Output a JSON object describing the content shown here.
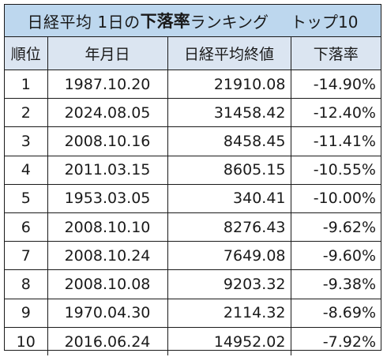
{
  "title": {
    "pre": "日経平均 1日の",
    "bold": "下落率",
    "post": "ランキング",
    "suffix": "トップ10"
  },
  "headers": [
    "順位",
    "年月日",
    "日経平均終値",
    "下落率"
  ],
  "rows": [
    [
      "1",
      "1987.10.20",
      "21910.08",
      "-14.90%"
    ],
    [
      "2",
      "2024.08.05",
      "31458.42",
      "-12.40%"
    ],
    [
      "3",
      "2008.10.16",
      "8458.45",
      "-11.41%"
    ],
    [
      "4",
      "2011.03.15",
      "8605.15",
      "-10.55%"
    ],
    [
      "5",
      "1953.03.05",
      "340.41",
      "-10.00%"
    ],
    [
      "6",
      "2008.10.10",
      "8276.43",
      "-9.62%"
    ],
    [
      "7",
      "2008.10.24",
      "7649.08",
      "-9.60%"
    ],
    [
      "8",
      "2008.10.08",
      "9203.32",
      "-9.38%"
    ],
    [
      "9",
      "1970.04.30",
      "2114.32",
      "-8.69%"
    ],
    [
      "10",
      "2016.06.24",
      "14952.02",
      "-7.92%"
    ]
  ],
  "colors": {
    "title_bg": "#bdd7ee",
    "header_bg": "#dbe5f1",
    "border": "#1a1a1a"
  }
}
